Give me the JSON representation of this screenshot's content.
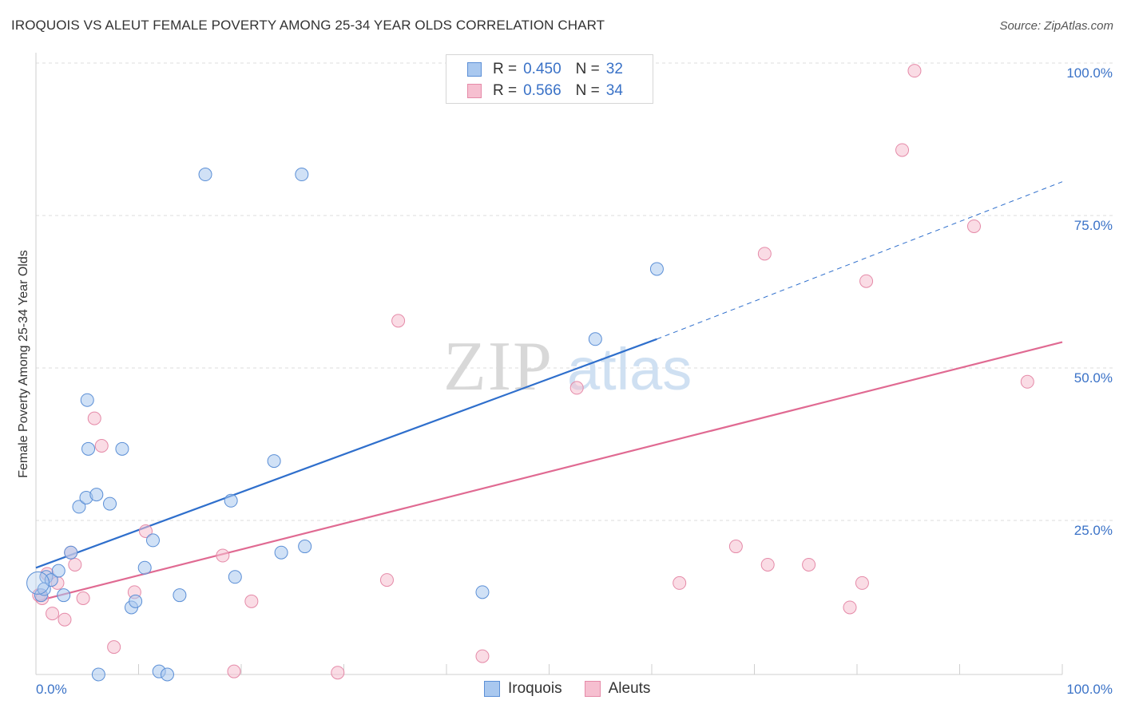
{
  "title": "IROQUOIS VS ALEUT FEMALE POVERTY AMONG 25-34 YEAR OLDS CORRELATION CHART",
  "source": "Source: ZipAtlas.com",
  "legend": {
    "rows": [
      {
        "r_label": "R =",
        "r_value": "0.450",
        "n_label": "N =",
        "n_value": "32"
      },
      {
        "r_label": "R =",
        "r_value": "0.566",
        "n_label": "N =",
        "n_value": "34"
      }
    ]
  },
  "bottom_legend": [
    "Iroquois",
    "Aleuts"
  ],
  "colors": {
    "iroquois_fill": "#a9c8ef",
    "iroquois_stroke": "#5b8fd6",
    "iroquois_line": "#2f6fcc",
    "aleuts_fill": "#f6bfd0",
    "aleuts_stroke": "#e58aa8",
    "aleuts_line": "#e06a92",
    "axis_label": "#3a72c7",
    "grid": "#dedede"
  },
  "chart_data": {
    "type": "scatter",
    "title": "IROQUOIS VS ALEUT FEMALE POVERTY AMONG 25-34 YEAR OLDS CORRELATION CHART",
    "xlabel": "",
    "ylabel": "Female Poverty Among 25-34 Year Olds",
    "xlim": [
      0,
      100
    ],
    "ylim": [
      0,
      100
    ],
    "x_tick_labels": [
      "0.0%",
      "100.0%"
    ],
    "y_ticks": [
      25,
      50,
      75,
      100
    ],
    "y_tick_labels": [
      "25.0%",
      "50.0%",
      "75.0%",
      "100.0%"
    ],
    "grid": true,
    "legend_position": "top-center",
    "watermark": "ZIPatlas",
    "series": [
      {
        "name": "Iroquois",
        "r": 0.45,
        "n": 32,
        "points": [
          [
            0.5,
            13.0
          ],
          [
            0.8,
            14.0
          ],
          [
            1.0,
            16.0
          ],
          [
            1.5,
            15.5
          ],
          [
            2.2,
            17.0
          ],
          [
            2.7,
            13.0
          ],
          [
            3.4,
            20.0
          ],
          [
            4.2,
            27.5
          ],
          [
            4.9,
            29.0
          ],
          [
            5.0,
            45.0
          ],
          [
            5.1,
            37.0
          ],
          [
            5.9,
            29.5
          ],
          [
            6.1,
            0.0
          ],
          [
            7.2,
            28.0
          ],
          [
            8.4,
            37.0
          ],
          [
            9.3,
            11.0
          ],
          [
            9.7,
            12.0
          ],
          [
            10.6,
            17.5
          ],
          [
            11.4,
            22.0
          ],
          [
            12.0,
            0.5
          ],
          [
            12.8,
            0.0
          ],
          [
            14.0,
            13.0
          ],
          [
            16.5,
            82.0
          ],
          [
            19.0,
            28.5
          ],
          [
            19.4,
            16.0
          ],
          [
            23.2,
            35.0
          ],
          [
            23.9,
            20.0
          ],
          [
            25.9,
            82.0
          ],
          [
            26.2,
            21.0
          ],
          [
            43.5,
            13.5
          ],
          [
            54.5,
            55.0
          ],
          [
            60.5,
            66.5
          ]
        ],
        "trend": {
          "x0": 0,
          "y0": 17.5,
          "x1": 60.5,
          "y1": 55.0,
          "dash_to_x": 100,
          "dash_to_y": 80.8
        }
      },
      {
        "name": "Aleuts",
        "r": 0.566,
        "n": 34,
        "points": [
          [
            0.3,
            13.0
          ],
          [
            0.6,
            12.5
          ],
          [
            1.1,
            16.5
          ],
          [
            1.6,
            10.0
          ],
          [
            2.1,
            15.0
          ],
          [
            2.8,
            9.0
          ],
          [
            3.4,
            20.0
          ],
          [
            3.8,
            18.0
          ],
          [
            4.6,
            12.5
          ],
          [
            5.7,
            42.0
          ],
          [
            6.4,
            37.5
          ],
          [
            7.6,
            4.5
          ],
          [
            9.6,
            13.5
          ],
          [
            10.7,
            23.5
          ],
          [
            18.2,
            19.5
          ],
          [
            19.3,
            0.5
          ],
          [
            21.0,
            12.0
          ],
          [
            29.4,
            0.3
          ],
          [
            34.2,
            15.5
          ],
          [
            35.3,
            58.0
          ],
          [
            43.5,
            3.0
          ],
          [
            52.7,
            47.0
          ],
          [
            62.7,
            15.0
          ],
          [
            68.2,
            21.0
          ],
          [
            71.0,
            69.0
          ],
          [
            71.3,
            18.0
          ],
          [
            75.3,
            18.0
          ],
          [
            79.3,
            11.0
          ],
          [
            80.5,
            15.0
          ],
          [
            80.9,
            64.5
          ],
          [
            84.4,
            86.0
          ],
          [
            85.6,
            99.0
          ],
          [
            91.4,
            73.5
          ],
          [
            96.6,
            48.0
          ]
        ],
        "trend": {
          "x0": 0,
          "y0": 12.0,
          "x1": 100,
          "y1": 54.5
        }
      }
    ]
  }
}
